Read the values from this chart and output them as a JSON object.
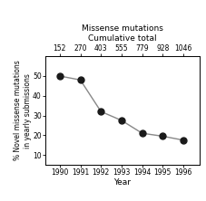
{
  "years": [
    1990,
    1991,
    1992,
    1993,
    1994,
    1995,
    1996
  ],
  "cumulative_totals": [
    152,
    270,
    403,
    555,
    779,
    928,
    1046
  ],
  "pct_novel": [
    50.0,
    48.0,
    32.0,
    27.5,
    21.0,
    19.5,
    17.5
  ],
  "top_title_line1": "Missense mutations",
  "top_title_line2": "Cumulative total",
  "xlabel": "Year",
  "ylabel": "% Novel missense mutations\nin yearly submissions",
  "ylim": [
    5,
    60
  ],
  "yticks": [
    10,
    20,
    30,
    40,
    50
  ],
  "xlim": [
    1989.3,
    1996.8
  ],
  "background_color": "#ffffff",
  "line_color": "#888888",
  "marker_color": "#1a1a1a",
  "marker_size": 5,
  "line_width": 1.0,
  "tick_labelsize": 5.5,
  "ylabel_fontsize": 5.5,
  "xlabel_fontsize": 6.5,
  "title_fontsize": 6.5
}
